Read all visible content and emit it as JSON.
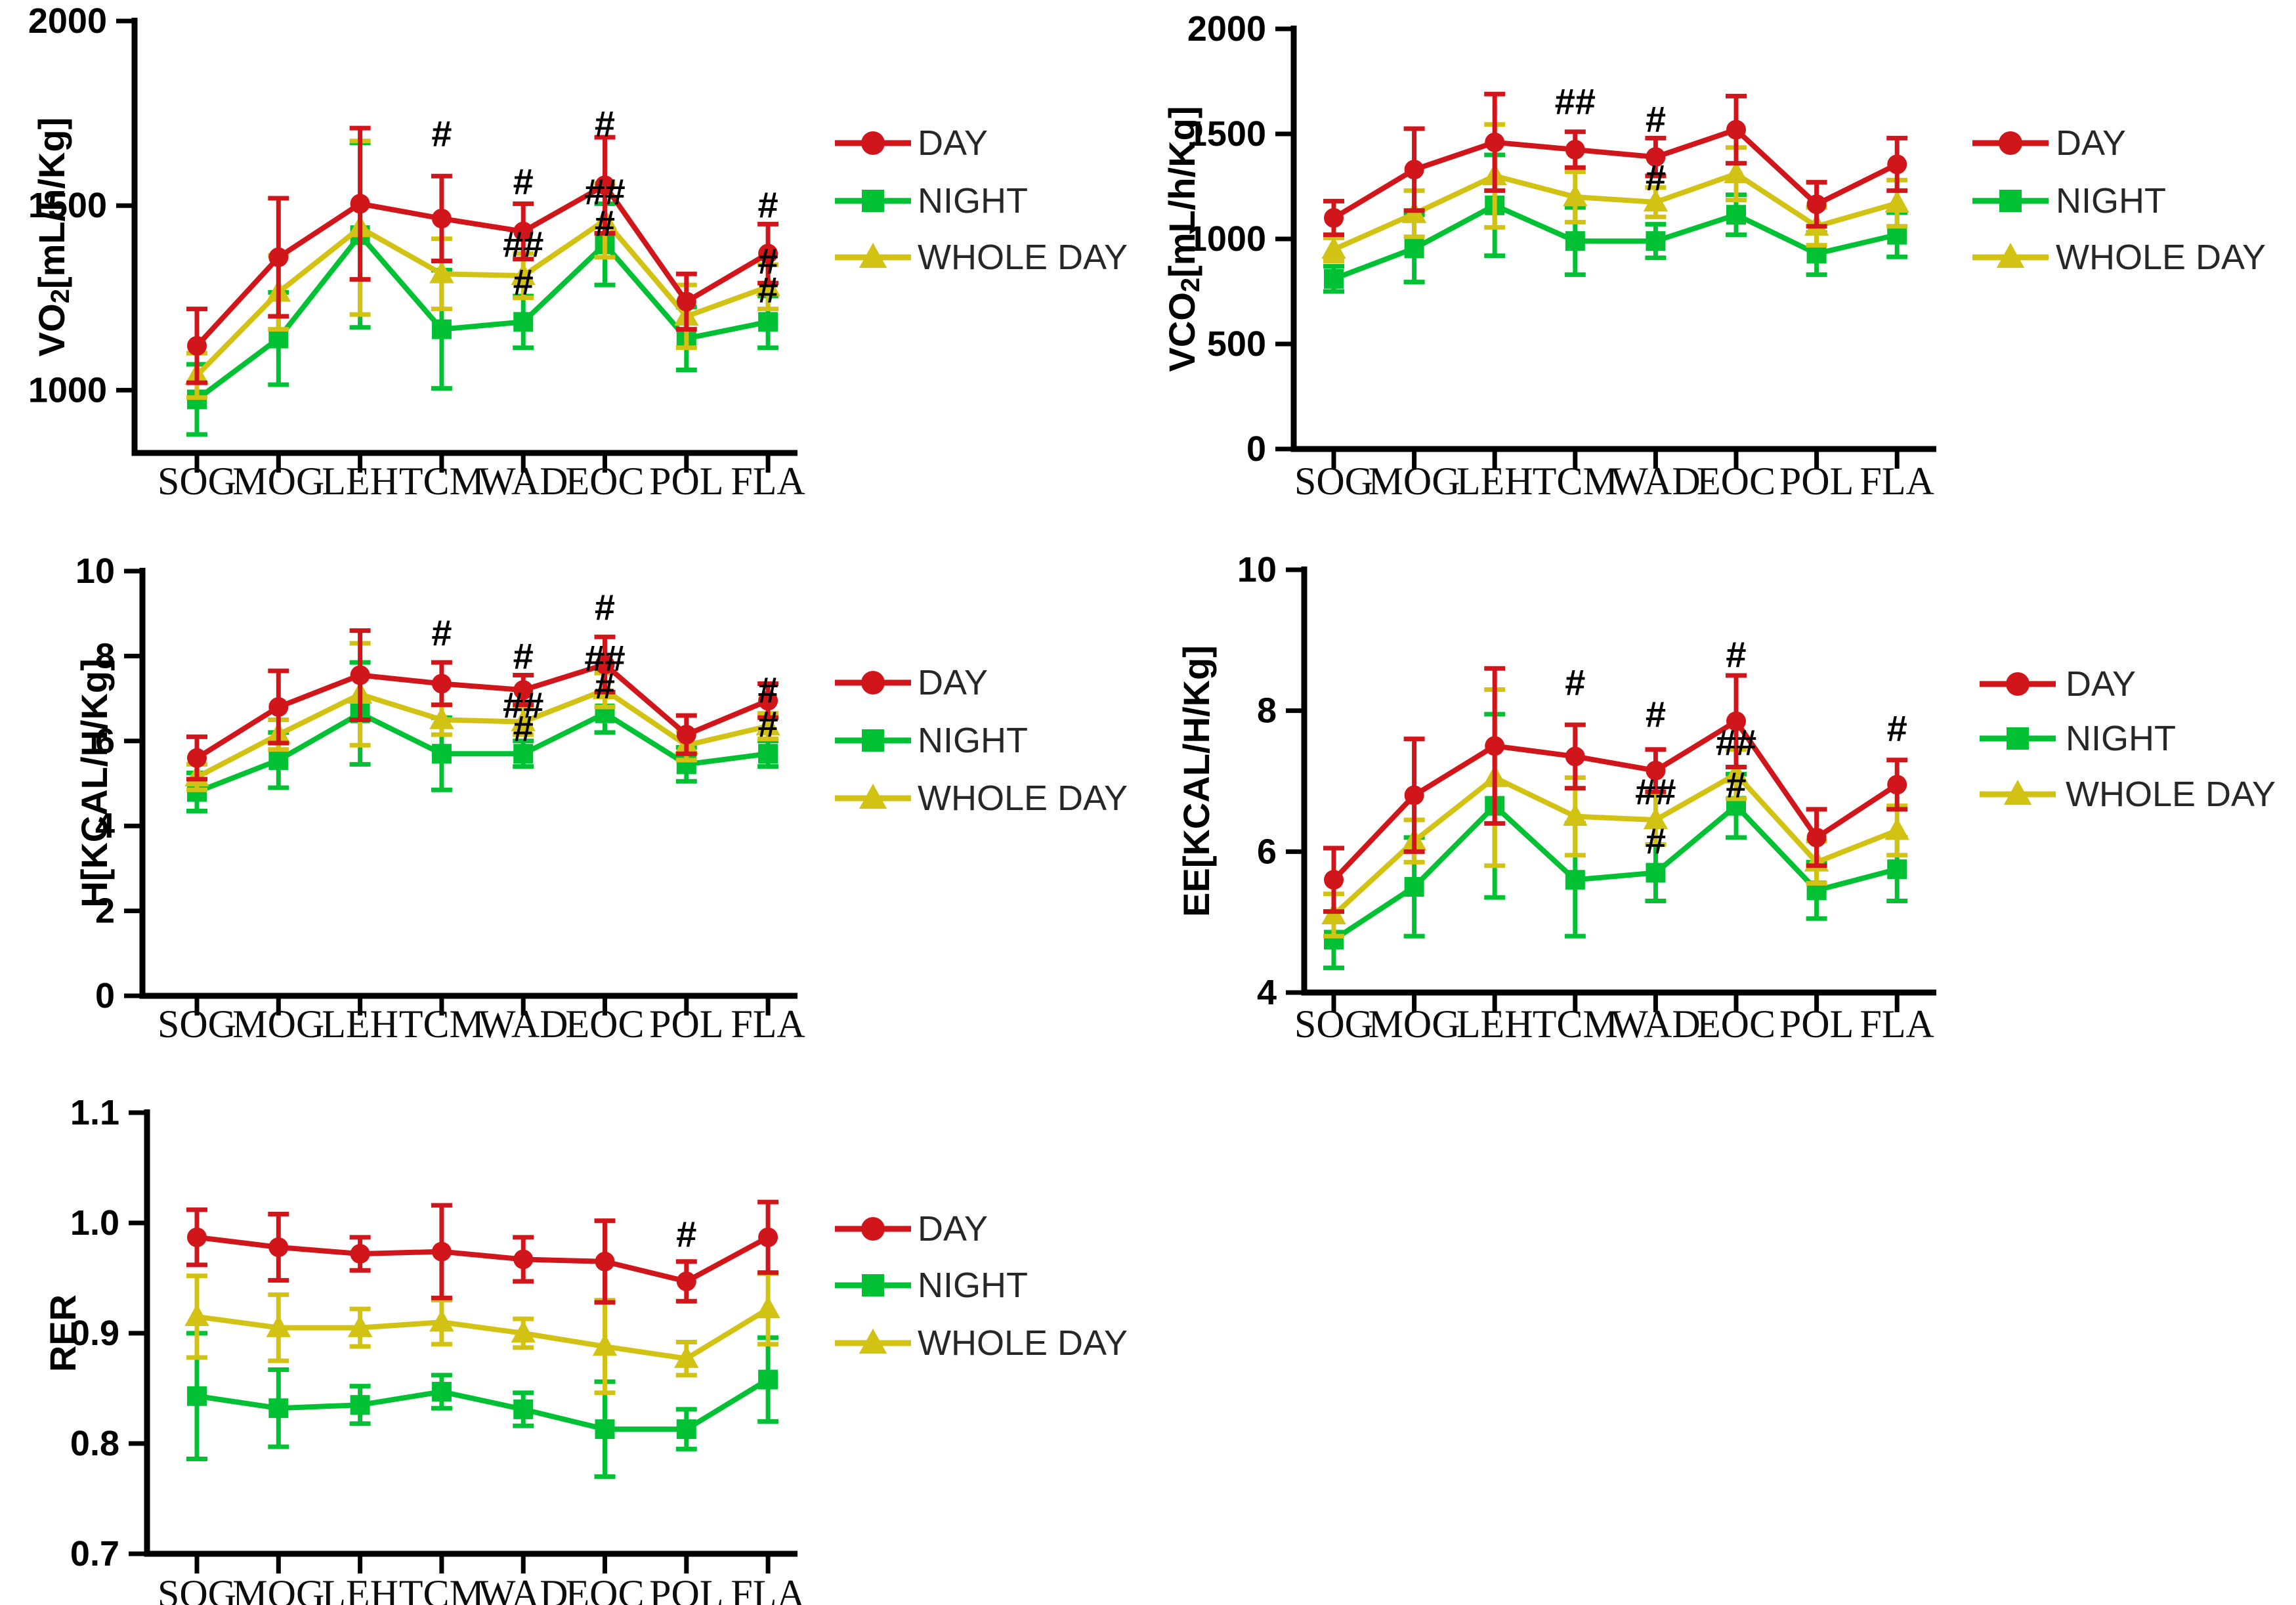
{
  "figure": {
    "background": "#ffffff",
    "legend": {
      "labels": [
        "DAY",
        "NIGHT",
        "WHOLE DAY"
      ]
    },
    "colors": {
      "day": "#d0151b",
      "night": "#00c133",
      "whole_day": "#d2c214",
      "axis": "#000000"
    }
  },
  "chart_data": [
    {
      "id": "vo2",
      "type": "line",
      "ylabel": "VO2[mL/h/Kg]",
      "ylabel_parts": [
        {
          "t": "VO"
        },
        {
          "t": "2",
          "sub": true
        },
        {
          "t": "[mL/h/Kg]"
        }
      ],
      "categories": [
        "SOG",
        "MOG",
        "LEH",
        "TCM",
        "WAD",
        "EOC",
        "POL",
        "FLA"
      ],
      "ylim": [
        830,
        2000
      ],
      "yticks": [
        {
          "label": "2000",
          "value": 2000
        },
        {
          "label": "1500",
          "value": 1500
        },
        {
          "label": "1000",
          "value": 1000
        }
      ],
      "grid": false,
      "series": [
        {
          "name": "DAY",
          "marker": "circle",
          "color": "#d0151b",
          "values": [
            1120,
            1360,
            1505,
            1465,
            1430,
            1555,
            1240,
            1370
          ],
          "errors": [
            100,
            160,
            205,
            115,
            75,
            130,
            75,
            80
          ]
        },
        {
          "name": "NIGHT",
          "marker": "square",
          "color": "#00c133",
          "values": [
            975,
            1140,
            1420,
            1165,
            1185,
            1395,
            1140,
            1185
          ],
          "errors": [
            95,
            125,
            250,
            160,
            70,
            110,
            85,
            70
          ]
        },
        {
          "name": "WHOLE DAY",
          "marker": "triangle",
          "color": "#d2c214",
          "values": [
            1040,
            1265,
            1440,
            1315,
            1310,
            1460,
            1200,
            1280
          ],
          "errors": [
            60,
            100,
            235,
            95,
            60,
            100,
            85,
            60
          ]
        }
      ],
      "annotations": [
        {
          "category": "TCM",
          "value": 1695,
          "text": "#"
        },
        {
          "category": "WAD",
          "value": 1565,
          "text": "#"
        },
        {
          "category": "WAD",
          "value": 1395,
          "text": "##"
        },
        {
          "category": "WAD",
          "value": 1293,
          "text": "#"
        },
        {
          "category": "EOC",
          "value": 1722,
          "text": "#"
        },
        {
          "category": "EOC",
          "value": 1538,
          "text": "##"
        },
        {
          "category": "EOC",
          "value": 1452,
          "text": "#"
        },
        {
          "category": "FLA",
          "value": 1502,
          "text": "#"
        },
        {
          "category": "FLA",
          "value": 1350,
          "text": "#"
        },
        {
          "category": "FLA",
          "value": 1272,
          "text": "#"
        }
      ]
    },
    {
      "id": "vco2",
      "type": "line",
      "ylabel": "VCO2[mL/h/Kg]",
      "ylabel_parts": [
        {
          "t": "VCO"
        },
        {
          "t": "2",
          "sub": true
        },
        {
          "t": "[mL/h/Kg]"
        }
      ],
      "categories": [
        "SOG",
        "MOG",
        "LEH",
        "TCM",
        "WAD",
        "EOC",
        "POL",
        "FLA"
      ],
      "ylim": [
        0,
        2000
      ],
      "yticks": [
        {
          "label": "2000",
          "value": 2000
        },
        {
          "label": "1500",
          "value": 1500
        },
        {
          "label": "1000",
          "value": 1000
        },
        {
          "label": "500",
          "value": 500
        },
        {
          "label": "0",
          "value": 0
        }
      ],
      "grid": false,
      "series": [
        {
          "name": "DAY",
          "marker": "circle",
          "color": "#d0151b",
          "values": [
            1100,
            1330,
            1460,
            1425,
            1390,
            1520,
            1165,
            1355
          ],
          "errors": [
            80,
            195,
            230,
            85,
            90,
            160,
            105,
            125
          ]
        },
        {
          "name": "NIGHT",
          "marker": "square",
          "color": "#00c133",
          "values": [
            810,
            955,
            1160,
            990,
            990,
            1115,
            930,
            1020
          ],
          "errors": [
            60,
            160,
            240,
            160,
            80,
            95,
            100,
            105
          ]
        },
        {
          "name": "WHOLE DAY",
          "marker": "triangle",
          "color": "#d2c214",
          "values": [
            950,
            1120,
            1300,
            1200,
            1175,
            1310,
            1060,
            1170
          ],
          "errors": [
            55,
            110,
            245,
            120,
            70,
            125,
            90,
            110
          ]
        }
      ],
      "annotations": [
        {
          "category": "TCM",
          "value": 1655,
          "text": "##"
        },
        {
          "category": "WAD",
          "value": 1570,
          "text": "#"
        },
        {
          "category": "WAD",
          "value": 1292,
          "text": "#"
        }
      ]
    },
    {
      "id": "h",
      "type": "line",
      "ylabel": "H[KCAL/H/Kg]",
      "ylabel_parts": [
        {
          "t": "H[KCAL/H/Kg]"
        }
      ],
      "categories": [
        "SOG",
        "MOG",
        "LEH",
        "TCM",
        "WAD",
        "EOC",
        "POL",
        "FLA"
      ],
      "ylim": [
        0,
        10
      ],
      "yticks": [
        {
          "label": "10",
          "value": 10
        },
        {
          "label": "8",
          "value": 8
        },
        {
          "label": "6",
          "value": 6
        },
        {
          "label": "4",
          "value": 4
        },
        {
          "label": "2",
          "value": 2
        },
        {
          "label": "0",
          "value": 0
        }
      ],
      "grid": false,
      "series": [
        {
          "name": "DAY",
          "marker": "circle",
          "color": "#d0151b",
          "values": [
            5.6,
            6.8,
            7.55,
            7.35,
            7.2,
            7.8,
            6.15,
            6.95
          ],
          "errors": [
            0.5,
            0.85,
            1.05,
            0.5,
            0.35,
            0.65,
            0.45,
            0.4
          ]
        },
        {
          "name": "NIGHT",
          "marker": "square",
          "color": "#00c133",
          "values": [
            4.8,
            5.55,
            6.65,
            5.7,
            5.7,
            6.65,
            5.45,
            5.7
          ],
          "errors": [
            0.45,
            0.65,
            1.2,
            0.85,
            0.3,
            0.45,
            0.4,
            0.3
          ]
        },
        {
          "name": "WHOLE DAY",
          "marker": "triangle",
          "color": "#d2c214",
          "values": [
            5.15,
            6.15,
            7.1,
            6.5,
            6.45,
            7.2,
            5.9,
            6.35
          ],
          "errors": [
            0.3,
            0.35,
            1.2,
            0.35,
            0.3,
            0.4,
            0.35,
            0.3
          ]
        }
      ],
      "annotations": [
        {
          "category": "TCM",
          "value": 8.55,
          "text": "#"
        },
        {
          "category": "WAD",
          "value": 8.0,
          "text": "#"
        },
        {
          "category": "WAD",
          "value": 6.85,
          "text": "##"
        },
        {
          "category": "WAD",
          "value": 6.3,
          "text": "#"
        },
        {
          "category": "EOC",
          "value": 9.15,
          "text": "#"
        },
        {
          "category": "EOC",
          "value": 7.95,
          "text": "##"
        },
        {
          "category": "EOC",
          "value": 7.3,
          "text": "#"
        },
        {
          "category": "FLA",
          "value": 7.2,
          "text": "#"
        },
        {
          "category": "FLA",
          "value": 6.4,
          "text": "#"
        }
      ]
    },
    {
      "id": "ee",
      "type": "line",
      "ylabel": "EE[KCAL/H/Kg]",
      "ylabel_parts": [
        {
          "t": "EE[KCAL/H/Kg]"
        }
      ],
      "categories": [
        "SOG",
        "MOG",
        "LEH",
        "TCM",
        "WAD",
        "EOC",
        "POL",
        "FLA"
      ],
      "ylim": [
        4,
        10
      ],
      "yticks": [
        {
          "label": "10",
          "value": 10
        },
        {
          "label": "8",
          "value": 8
        },
        {
          "label": "6",
          "value": 6
        },
        {
          "label": "4",
          "value": 4
        }
      ],
      "grid": false,
      "series": [
        {
          "name": "DAY",
          "marker": "circle",
          "color": "#d0151b",
          "values": [
            5.6,
            6.8,
            7.5,
            7.35,
            7.15,
            7.85,
            6.2,
            6.95
          ],
          "errors": [
            0.45,
            0.8,
            1.1,
            0.45,
            0.3,
            0.65,
            0.4,
            0.35
          ]
        },
        {
          "name": "NIGHT",
          "marker": "square",
          "color": "#00c133",
          "values": [
            4.75,
            5.5,
            6.65,
            5.6,
            5.7,
            6.65,
            5.45,
            5.75
          ],
          "errors": [
            0.4,
            0.7,
            1.3,
            0.8,
            0.4,
            0.45,
            0.4,
            0.45
          ]
        },
        {
          "name": "WHOLE DAY",
          "marker": "triangle",
          "color": "#d2c214",
          "values": [
            5.1,
            6.15,
            7.05,
            6.5,
            6.45,
            7.1,
            5.85,
            6.3
          ],
          "errors": [
            0.3,
            0.3,
            1.25,
            0.55,
            0.35,
            0.35,
            0.3,
            0.35
          ]
        }
      ],
      "annotations": [
        {
          "category": "TCM",
          "value": 8.4,
          "text": "#"
        },
        {
          "category": "WAD",
          "value": 7.95,
          "text": "#"
        },
        {
          "category": "WAD",
          "value": 6.85,
          "text": "##"
        },
        {
          "category": "WAD",
          "value": 6.15,
          "text": "#"
        },
        {
          "category": "EOC",
          "value": 8.8,
          "text": "#"
        },
        {
          "category": "EOC",
          "value": 7.55,
          "text": "##"
        },
        {
          "category": "EOC",
          "value": 6.95,
          "text": "#"
        },
        {
          "category": "FLA",
          "value": 7.75,
          "text": "#"
        }
      ]
    },
    {
      "id": "rer",
      "type": "line",
      "ylabel": "RER",
      "ylabel_parts": [
        {
          "t": "RER"
        }
      ],
      "categories": [
        "SOG",
        "MOG",
        "LEH",
        "TCM",
        "WAD",
        "EOC",
        "POL",
        "FLA"
      ],
      "ylim": [
        0.7,
        1.1
      ],
      "yticks": [
        {
          "label": "1.1",
          "value": 1.1
        },
        {
          "label": "1.0",
          "value": 1.0
        },
        {
          "label": "0.9",
          "value": 0.9
        },
        {
          "label": "0.8",
          "value": 0.8
        },
        {
          "label": "0.7",
          "value": 0.7
        }
      ],
      "grid": false,
      "series": [
        {
          "name": "DAY",
          "marker": "circle",
          "color": "#d0151b",
          "values": [
            0.987,
            0.978,
            0.972,
            0.974,
            0.967,
            0.965,
            0.947,
            0.987
          ],
          "errors": [
            0.025,
            0.03,
            0.015,
            0.042,
            0.02,
            0.037,
            0.018,
            0.032
          ]
        },
        {
          "name": "NIGHT",
          "marker": "square",
          "color": "#00c133",
          "values": [
            0.843,
            0.832,
            0.835,
            0.847,
            0.831,
            0.813,
            0.813,
            0.858
          ],
          "errors": [
            0.057,
            0.035,
            0.017,
            0.015,
            0.015,
            0.043,
            0.018,
            0.038
          ]
        },
        {
          "name": "WHOLE DAY",
          "marker": "triangle",
          "color": "#d2c214",
          "values": [
            0.915,
            0.905,
            0.905,
            0.91,
            0.9,
            0.888,
            0.877,
            0.922
          ],
          "errors": [
            0.037,
            0.03,
            0.017,
            0.02,
            0.013,
            0.042,
            0.015,
            0.032
          ]
        }
      ],
      "annotations": [
        {
          "category": "POL",
          "value": 0.99,
          "text": "#"
        }
      ]
    }
  ]
}
